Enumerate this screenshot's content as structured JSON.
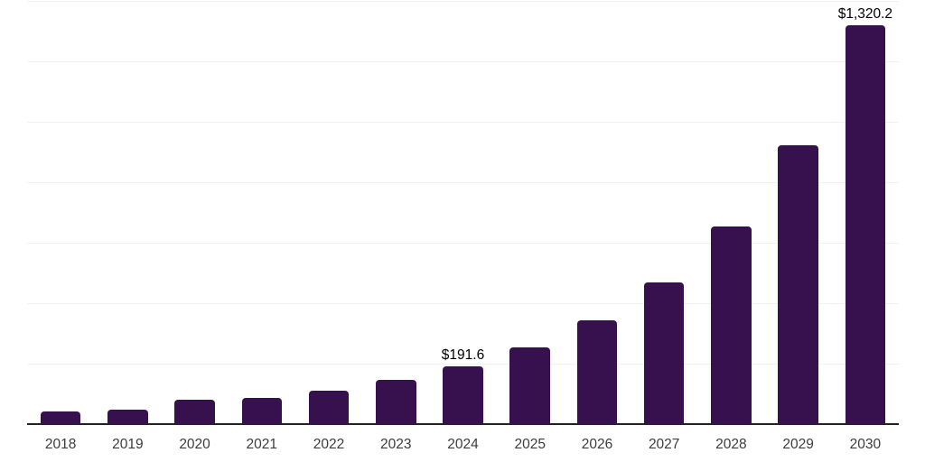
{
  "chart_data": {
    "type": "bar",
    "title": "",
    "xlabel": "",
    "ylabel": "",
    "categories": [
      "2018",
      "2019",
      "2020",
      "2021",
      "2022",
      "2023",
      "2024",
      "2025",
      "2026",
      "2027",
      "2028",
      "2029",
      "2030"
    ],
    "values": [
      41.9,
      47.9,
      81.6,
      86.7,
      110.5,
      146.4,
      191.6,
      253.8,
      343.5,
      469.0,
      654.0,
      922.5,
      1320.2
    ],
    "data_labels": [
      {
        "category": "2024",
        "text": "$191.6"
      },
      {
        "category": "2030",
        "text": "$1,320.2"
      }
    ],
    "ylim": [
      0,
      1400
    ],
    "grid_step": 200,
    "grid": "horizontal-only",
    "legend": "none",
    "y_axis_labels_visible": false,
    "colors": {
      "bar": "#36114E",
      "grid": "#F2F2F2",
      "axis": "#222222",
      "tick_text": "#3C3C3C",
      "data_label_text": "#000000",
      "background": "#FFFFFF"
    }
  }
}
